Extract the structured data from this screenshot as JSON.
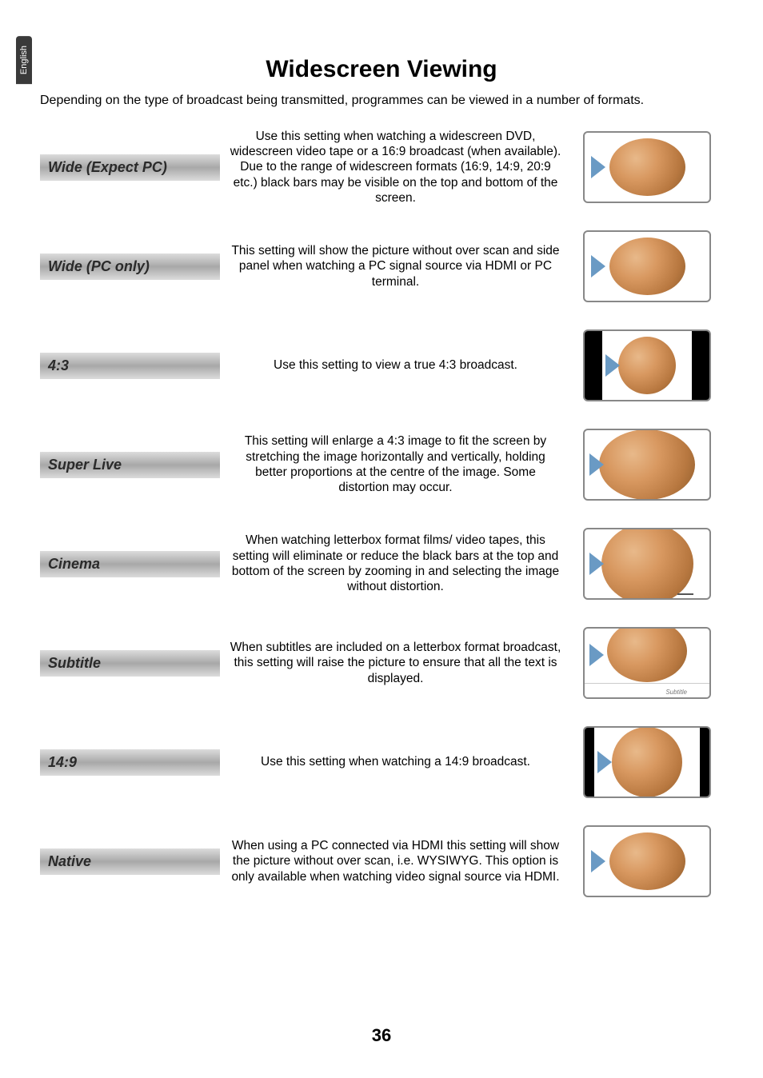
{
  "langTab": "English",
  "title": "Widescreen Viewing",
  "intro": "Depending on the type of broadcast being transmitted, programmes can be viewed in a number of formats.",
  "rows": [
    {
      "label": "Wide (Expect PC)",
      "desc": "Use this setting when watching a widescreen DVD, widescreen video tape or a 16:9 broadcast (when available). Due to the range of widescreen formats (16:9, 14:9, 20:9 etc.) black bars may be visible on the top and bottom of the screen.",
      "icon": "wide"
    },
    {
      "label": "Wide (PC only)",
      "desc": "This setting will show the picture without over scan and side panel when watching a PC signal source via HDMI or PC terminal.",
      "icon": "wide"
    },
    {
      "label": "4:3",
      "desc": "Use this setting to view a true 4:3 broadcast.",
      "icon": "43"
    },
    {
      "label": "Super Live",
      "desc": "This setting will enlarge a 4:3 image to fit the screen by stretching the image horizontally and vertically, holding better proportions at the centre of the image. Some distortion may occur.",
      "icon": "superlive"
    },
    {
      "label": "Cinema",
      "desc": "When watching letterbox format films/ video tapes, this setting will eliminate or reduce the black bars at the top and bottom of the screen by zooming in and selecting the image without distortion.",
      "icon": "cinema"
    },
    {
      "label": "Subtitle",
      "desc": "When subtitles are included on a letterbox format broadcast, this setting will raise the picture to ensure that all the text is displayed.",
      "icon": "subtitle"
    },
    {
      "label": "14:9",
      "desc": "Use this setting when watching a 14:9 broadcast.",
      "icon": "149"
    },
    {
      "label": "Native",
      "desc": "When using a PC connected via HDMI this setting will show the picture without over scan, i.e. WYSIWYG.\nThis option is only available when watching video signal source via HDMI.",
      "icon": "wide"
    }
  ],
  "subtitleWord": "Subtitle",
  "pageNumber": "36"
}
